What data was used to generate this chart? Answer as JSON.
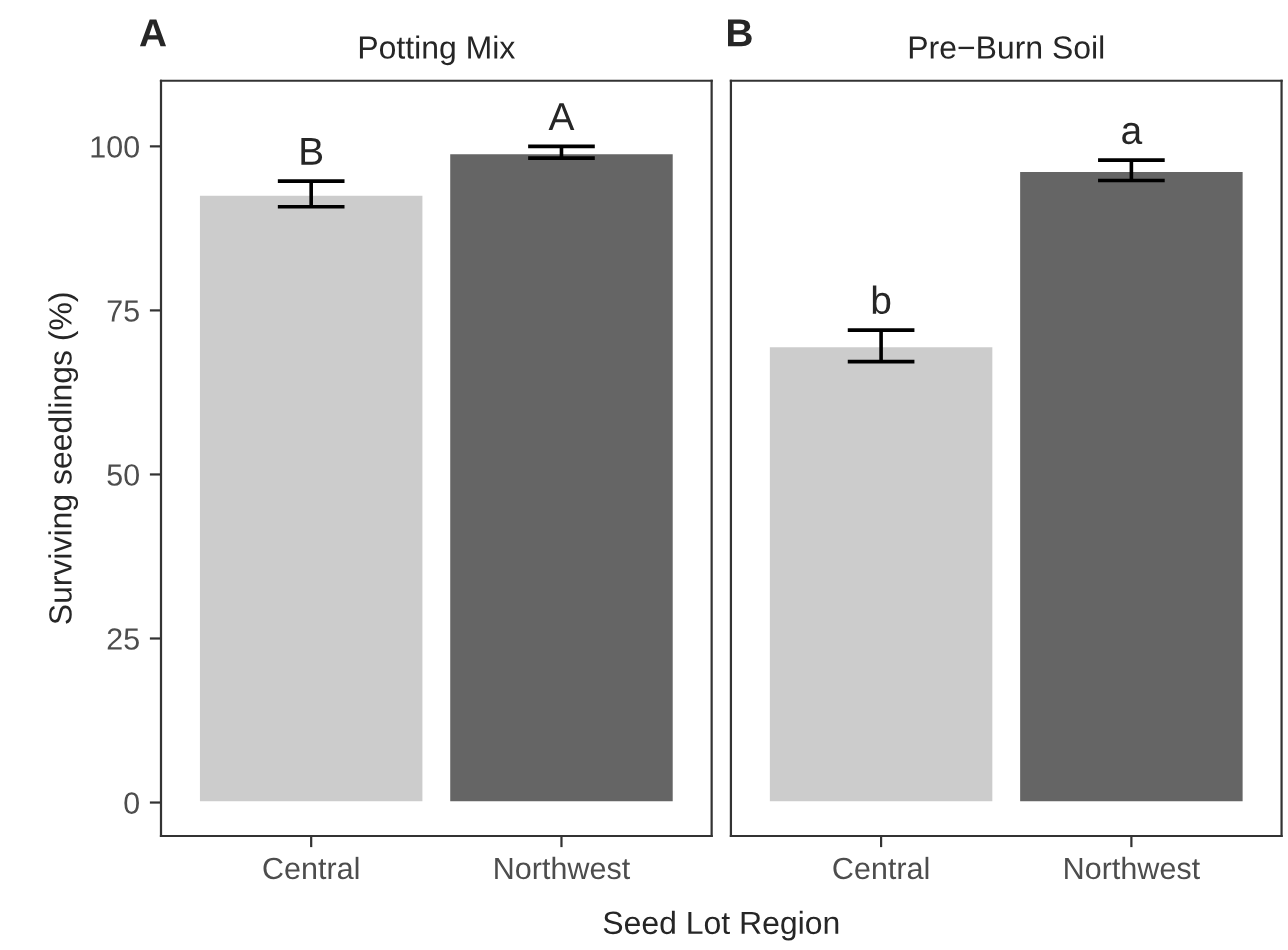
{
  "chart_data": [
    {
      "type": "bar",
      "title": "Potting Mix",
      "ylabel": "Surviving seedlings (%)",
      "xlabel": "Seed Lot Region",
      "categories": [
        "Central",
        "Northwest"
      ],
      "values": [
        92.7,
        99.0
      ],
      "colors": [
        "#cccccc",
        "#656565"
      ],
      "errors": [
        [
          90.8,
          94.7
        ],
        [
          98.2,
          100.0
        ]
      ],
      "ylim": [
        -5.1,
        110
      ],
      "yticks": [
        0,
        25,
        50,
        75,
        100
      ],
      "grid": false,
      "annotations": [
        "A",
        {
          "text": "B",
          "x": "Central",
          "y": 94.7
        },
        {
          "text": "A",
          "x": "Northwest",
          "y": 100.0
        }
      ]
    },
    {
      "type": "bar",
      "title": "Pre−Burn Soil",
      "categories": [
        "Central",
        "Northwest"
      ],
      "values": [
        69.6,
        96.3
      ],
      "colors": [
        "#cccccc",
        "#656565"
      ],
      "errors": [
        [
          67.2,
          72.0
        ],
        [
          94.8,
          97.9
        ]
      ],
      "ylim": [
        -5.1,
        110
      ],
      "yticks": [
        0,
        25,
        50,
        75,
        100
      ],
      "grid": false,
      "tick_labels": "x",
      "annotations": [
        "B",
        {
          "text": "b",
          "x": "Central",
          "y": 72.0
        },
        {
          "text": "a",
          "x": "Northwest",
          "y": 97.9
        }
      ]
    }
  ]
}
